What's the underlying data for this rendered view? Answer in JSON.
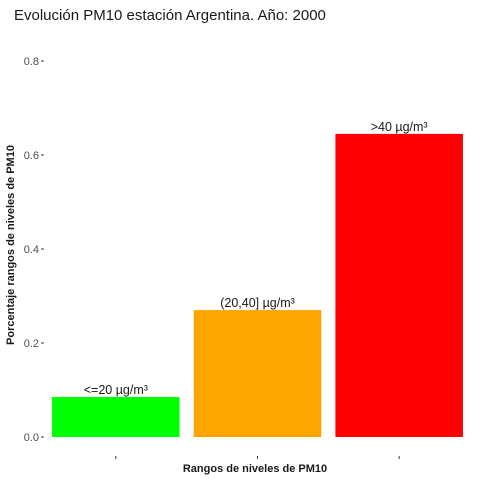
{
  "chart_data": {
    "type": "bar",
    "title": "Evolución PM10 estación Argentina. Año: 2000",
    "xlabel": "Rangos de niveles de PM10",
    "ylabel": "Porcentaje rangos de niveles de PM10",
    "ylim": [
      0,
      0.8
    ],
    "yticks": [
      "0.0",
      "0.2",
      "0.4",
      "0.6",
      "0.8"
    ],
    "ytick_values": [
      0,
      0.2,
      0.4,
      0.6,
      0.8
    ],
    "grid": false,
    "legend": "none",
    "categories": [
      "<=20 µg/m³",
      "(20,40] µg/m³",
      ">40 µg/m³"
    ],
    "values": [
      0.085,
      0.27,
      0.645
    ],
    "data_labels": [
      "<=20 µg/m³",
      "(20,40] µg/m³",
      ">40 µg/m³"
    ],
    "colors": [
      "#00ff00",
      "#ffa500",
      "#ff0000"
    ]
  }
}
